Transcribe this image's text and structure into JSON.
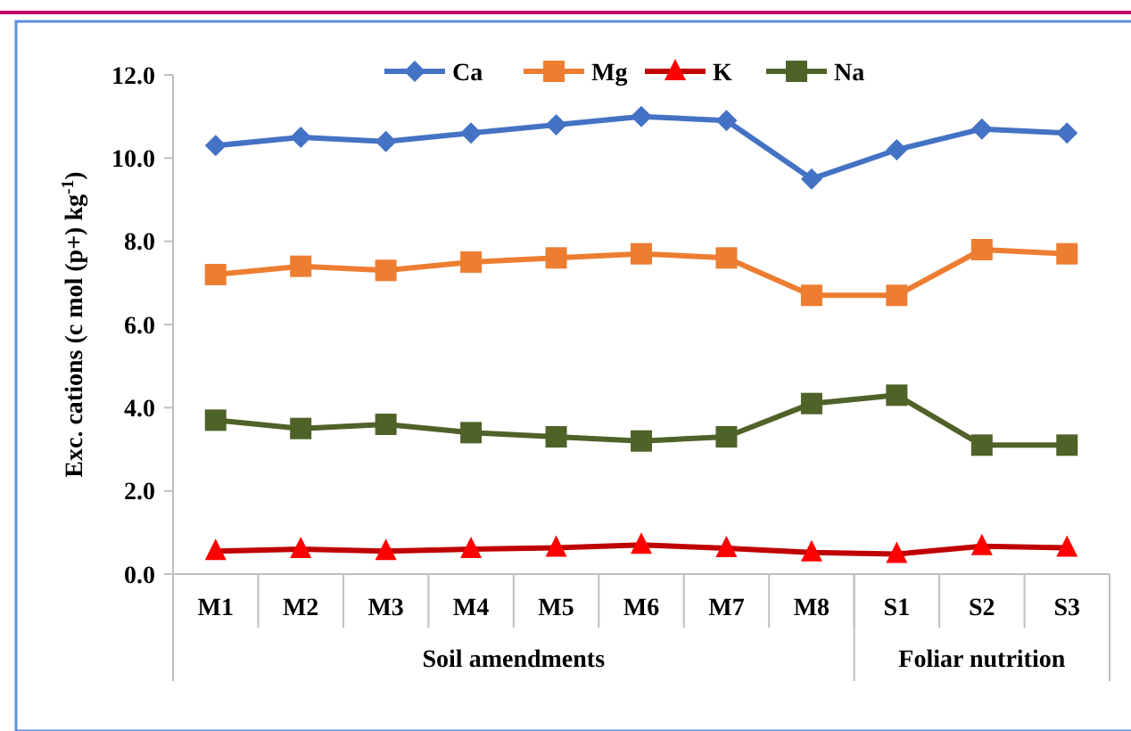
{
  "chart_data": {
    "type": "line",
    "ylabel": "Exc. cations (c mol (p+) kg$^{-1}$)",
    "categories": [
      "M1",
      "M2",
      "M3",
      "M4",
      "M5",
      "M6",
      "M7",
      "M8",
      "S1",
      "S2",
      "S3"
    ],
    "series": [
      {
        "name": "Ca",
        "color": "#4472c4",
        "marker": "diamond",
        "values": [
          10.3,
          10.5,
          10.4,
          10.6,
          10.8,
          11.0,
          10.9,
          9.5,
          10.2,
          10.7,
          10.6
        ]
      },
      {
        "name": "Mg",
        "color": "#ed7d31",
        "marker": "square",
        "values": [
          7.2,
          7.4,
          7.3,
          7.5,
          7.6,
          7.7,
          7.6,
          6.7,
          6.7,
          7.8,
          7.7
        ]
      },
      {
        "name": "K",
        "color": "#c00000",
        "marker": "triangle",
        "values": [
          0.55,
          0.6,
          0.55,
          0.6,
          0.63,
          0.7,
          0.62,
          0.52,
          0.48,
          0.67,
          0.63
        ]
      },
      {
        "name": "Na",
        "color": "#4f6228",
        "marker": "square",
        "values": [
          3.7,
          3.5,
          3.6,
          3.4,
          3.3,
          3.2,
          3.3,
          4.1,
          4.3,
          3.1,
          3.1
        ]
      }
    ],
    "ylim": [
      0,
      12
    ],
    "yticks": [
      {
        "value": 0,
        "label": "0.0"
      },
      {
        "value": 2,
        "label": "2.0"
      },
      {
        "value": 4,
        "label": "4.0"
      },
      {
        "value": 6,
        "label": "6.0"
      },
      {
        "value": 8,
        "label": "8.0"
      },
      {
        "value": 10,
        "label": "10.0"
      },
      {
        "value": 12,
        "label": "12.0"
      }
    ],
    "grid": false,
    "legend": "top",
    "line_style": "solid",
    "annotations": [
      "Soil amendments",
      "Foliar nutrition"
    ]
  }
}
